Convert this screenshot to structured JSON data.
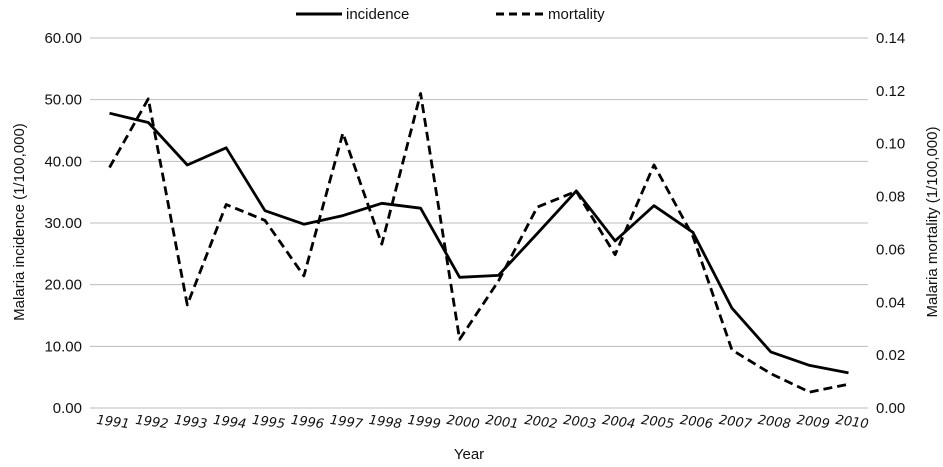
{
  "chart_data": {
    "type": "line",
    "categories": [
      "1991",
      "1992",
      "1993",
      "1994",
      "1995",
      "1996",
      "1997",
      "1998",
      "1999",
      "2000",
      "2001",
      "2002",
      "2003",
      "2004",
      "2005",
      "2006",
      "2007",
      "2008",
      "2009",
      "2010"
    ],
    "series": [
      {
        "name": "incidence",
        "axis": "left",
        "style": "solid",
        "values": [
          47.8,
          46.3,
          39.4,
          42.2,
          32.0,
          29.8,
          31.2,
          33.2,
          32.4,
          21.2,
          21.5,
          28.3,
          35.2,
          27.1,
          32.8,
          28.5,
          16.2,
          9.1,
          6.9,
          5.7
        ]
      },
      {
        "name": "mortality",
        "axis": "right",
        "style": "dashed",
        "values": [
          0.091,
          0.117,
          0.039,
          0.077,
          0.071,
          0.05,
          0.104,
          0.062,
          0.119,
          0.026,
          0.048,
          0.076,
          0.082,
          0.058,
          0.092,
          0.065,
          0.022,
          0.013,
          0.006,
          0.009
        ]
      }
    ],
    "xlabel": "Year",
    "ylabel_left": "Malaria incidence (1/100,000)",
    "ylabel_right": "Malaria mortality (1/100,000)",
    "ylim_left": [
      0,
      60
    ],
    "ylim_right": [
      0,
      0.14
    ],
    "yticks_left": [
      "0.00",
      "10.00",
      "20.00",
      "30.00",
      "40.00",
      "50.00",
      "60.00"
    ],
    "yticks_right": [
      "0.00",
      "0.02",
      "0.04",
      "0.06",
      "0.08",
      "0.10",
      "0.12",
      "0.14"
    ],
    "grid": "horizontal",
    "legend_position": "top-center",
    "colors": {
      "line": "#000000",
      "grid": "#bdbdbd"
    }
  }
}
